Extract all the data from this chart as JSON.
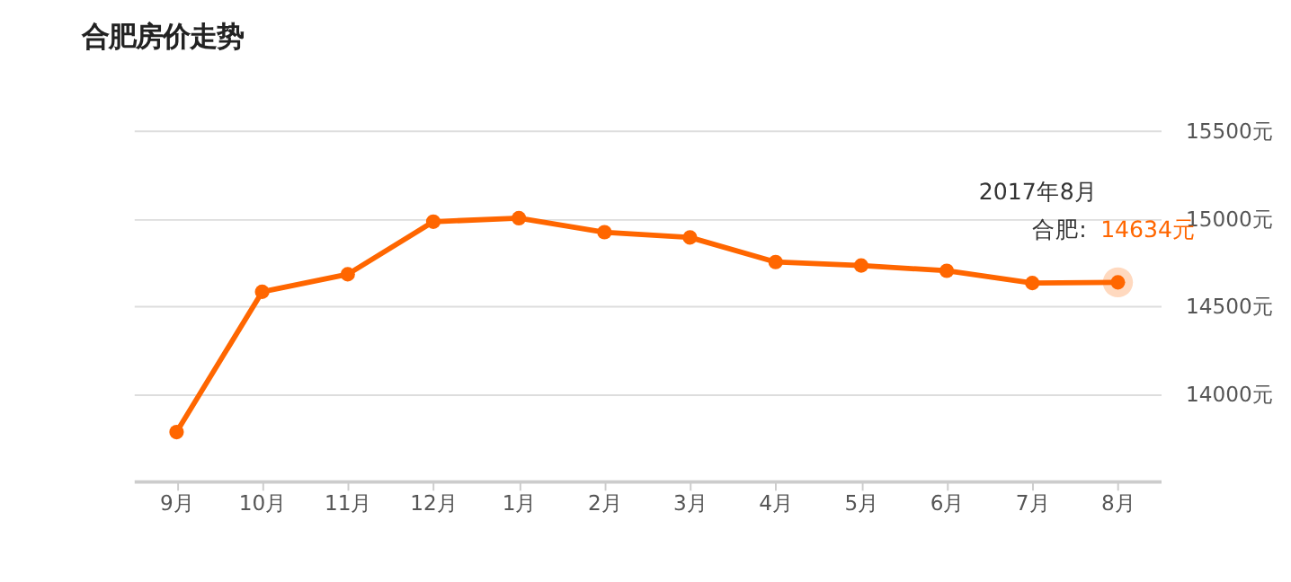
{
  "chart_data": {
    "type": "line",
    "title": "合肥房价走势",
    "categories": [
      "9月",
      "10月",
      "11月",
      "12月",
      "1月",
      "2月",
      "3月",
      "4月",
      "5月",
      "6月",
      "7月",
      "8月"
    ],
    "series": [
      {
        "name": "合肥:",
        "color": "#ff6600",
        "values": [
          13780,
          14580,
          14680,
          14980,
          15000,
          14920,
          14890,
          14750,
          14730,
          14700,
          14630,
          14634
        ],
        "value_labels": [
          null,
          null,
          null,
          null,
          null,
          null,
          null,
          null,
          null,
          null,
          null,
          "14634元"
        ]
      }
    ],
    "annotations": [
      "2017年8月"
    ],
    "ylim": [
      13500,
      15500
    ],
    "yticks": [
      {
        "value": 14000,
        "label": "14000元"
      },
      {
        "value": 14500,
        "label": "14500元"
      },
      {
        "value": 15000,
        "label": "15000元"
      },
      {
        "value": 15500,
        "label": "15500元"
      }
    ],
    "grid": "y",
    "marker": "circle",
    "line_style": "solid"
  }
}
